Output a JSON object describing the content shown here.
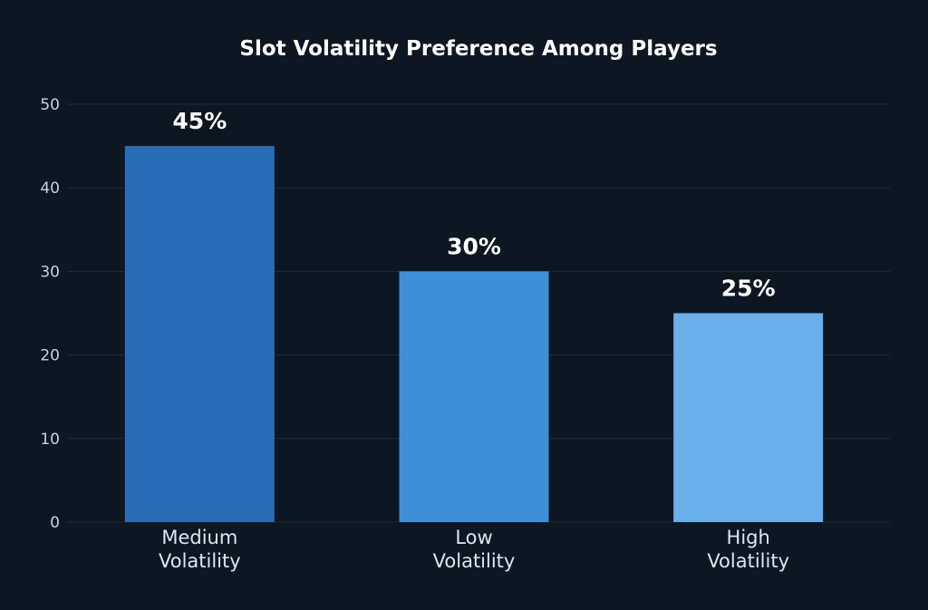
{
  "chart_data": {
    "type": "bar",
    "title": "Slot Volatility Preference Among Players",
    "categories": [
      [
        "Medium",
        "Volatility"
      ],
      [
        "Low",
        "Volatility"
      ],
      [
        "High",
        "Volatility"
      ]
    ],
    "values": [
      45,
      30,
      25
    ],
    "data_labels": [
      "45%",
      "30%",
      "25%"
    ],
    "colors": [
      "#2a6db5",
      "#3e8fd8",
      "#6aaeea"
    ],
    "ylim": [
      0,
      50
    ],
    "yticks": [
      0,
      10,
      20,
      30,
      40,
      50
    ],
    "xlabel": "",
    "ylabel": "",
    "grid": true,
    "legend": "none"
  }
}
